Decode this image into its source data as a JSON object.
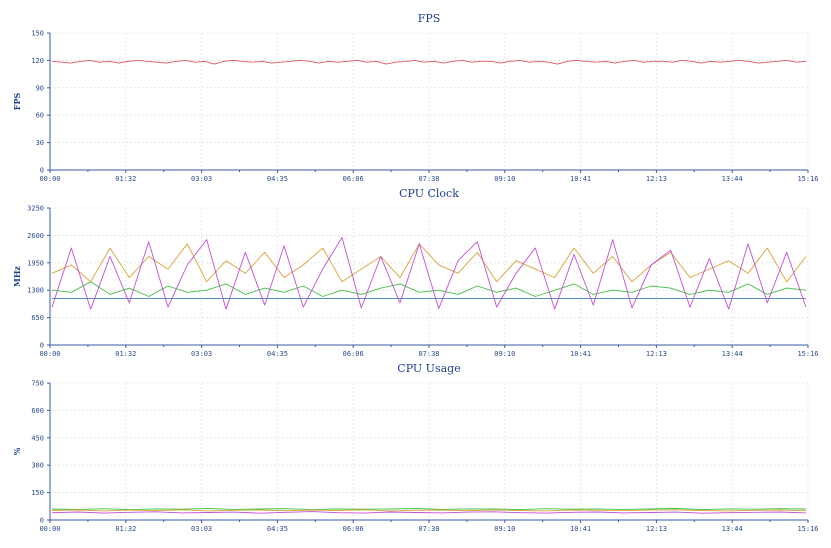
{
  "chart_data": [
    {
      "type": "line",
      "title": "FPS",
      "ylabel": "FPS",
      "xlabel": "",
      "ylim": [
        0,
        150
      ],
      "yticks": [
        0,
        30,
        60,
        90,
        120,
        150
      ],
      "xticks": [
        "00:00",
        "01:32",
        "03:03",
        "04:35",
        "06:06",
        "07:38",
        "09:10",
        "10:41",
        "12:13",
        "13:44",
        "15:16"
      ],
      "grid": true,
      "series": [
        {
          "name": "",
          "color": "#e05565",
          "values": [
            119,
            118,
            117,
            119,
            120,
            118,
            119,
            117,
            119,
            120,
            119,
            118,
            117,
            119,
            120,
            118,
            119,
            116,
            119,
            120,
            119,
            118,
            119,
            117,
            118,
            119,
            120,
            119,
            117,
            119,
            118,
            119,
            120,
            118,
            119,
            116,
            118,
            119,
            120,
            118,
            119,
            117,
            119,
            120,
            118,
            119,
            119,
            117,
            119,
            120,
            118,
            119,
            118,
            116,
            119,
            120,
            119,
            118,
            119,
            117,
            119,
            120,
            118,
            119,
            119,
            118,
            120,
            119,
            117,
            119,
            118,
            119,
            120,
            119,
            117,
            118,
            119,
            120,
            118,
            119
          ]
        }
      ]
    },
    {
      "type": "line",
      "title": "CPU Clock",
      "ylabel": "MHz",
      "xlabel": "",
      "ylim": [
        0,
        3250
      ],
      "yticks": [
        0,
        650,
        1300,
        1950,
        2600,
        3250
      ],
      "xticks": [
        "00:00",
        "01:32",
        "03:03",
        "04:35",
        "06:06",
        "07:38",
        "09:10",
        "10:41",
        "12:13",
        "13:44",
        "15:16"
      ],
      "grid": true,
      "series": [
        {
          "name": "",
          "color": "#3a7fb0",
          "values": [
            1100,
            1100,
            1100,
            1100,
            1100,
            1100,
            1100,
            1100,
            1100,
            1100,
            1100,
            1100,
            1100,
            1100,
            1100,
            1100,
            1100,
            1100,
            1100,
            1100,
            1100,
            1100,
            1100,
            1100,
            1100,
            1100,
            1100,
            1100,
            1100,
            1100,
            1100,
            1100,
            1100,
            1100,
            1100,
            1100,
            1100,
            1100,
            1100,
            1100
          ]
        },
        {
          "name": "",
          "color": "#44c043",
          "values": [
            1300,
            1250,
            1500,
            1200,
            1350,
            1150,
            1400,
            1250,
            1300,
            1450,
            1200,
            1350,
            1250,
            1400,
            1150,
            1300,
            1200,
            1350,
            1450,
            1250,
            1300,
            1200,
            1400,
            1250,
            1350,
            1150,
            1300,
            1450,
            1200,
            1300,
            1250,
            1400,
            1350,
            1200,
            1300,
            1250,
            1450,
            1200,
            1350,
            1300
          ]
        },
        {
          "name": "",
          "color": "#d9a23a",
          "values": [
            1700,
            1900,
            1500,
            2300,
            1600,
            2100,
            1800,
            2400,
            1500,
            2000,
            1700,
            2200,
            1600,
            1900,
            2300,
            1500,
            1800,
            2100,
            1600,
            2400,
            1900,
            1700,
            2200,
            1500,
            2000,
            1800,
            1600,
            2300,
            1700,
            2100,
            1500,
            1900,
            2200,
            1600,
            1800,
            2000,
            1700,
            2300,
            1500,
            2100
          ]
        },
        {
          "name": "",
          "color": "#c34fd6",
          "values": [
            900,
            2300,
            850,
            2100,
            1000,
            2450,
            900,
            1900,
            2500,
            850,
            2200,
            950,
            2350,
            900,
            1800,
            2550,
            880,
            2100,
            1000,
            2400,
            860,
            2000,
            2450,
            900,
            1700,
            2300,
            850,
            2150,
            950,
            2500,
            880,
            1900,
            2250,
            900,
            2050,
            850,
            2400,
            1000,
            2200,
            900
          ]
        }
      ]
    },
    {
      "type": "line",
      "title": "CPU Usage",
      "ylabel": "%",
      "xlabel": "",
      "ylim": [
        0,
        750
      ],
      "yticks": [
        0,
        150,
        300,
        450,
        600,
        750
      ],
      "xticks": [
        "00:00",
        "01:32",
        "03:03",
        "04:35",
        "06:06",
        "07:38",
        "09:10",
        "10:41",
        "12:13",
        "13:44",
        "15:16"
      ],
      "grid": true,
      "series": [
        {
          "name": "",
          "color": "#44c043",
          "values": [
            60,
            58,
            62,
            57,
            61,
            59,
            63,
            58,
            60,
            62,
            57,
            61,
            59,
            60,
            63,
            58,
            61,
            60,
            57,
            62,
            59,
            61,
            58,
            60,
            63,
            57,
            61,
            59,
            62,
            60
          ]
        },
        {
          "name": "",
          "color": "#d9a23a",
          "values": [
            52,
            55,
            50,
            54,
            51,
            56,
            50,
            53,
            55,
            51,
            54,
            52,
            56,
            50,
            53,
            55,
            51,
            54,
            52,
            50,
            55,
            53,
            51,
            54,
            56,
            52,
            50,
            53,
            55,
            51
          ]
        },
        {
          "name": "",
          "color": "#c34fd6",
          "values": [
            40,
            44,
            38,
            42,
            45,
            39,
            41,
            43,
            37,
            42,
            46,
            40,
            38,
            44,
            41,
            39,
            43,
            45,
            40,
            38,
            42,
            44,
            39,
            41,
            43,
            37,
            40,
            42,
            44,
            39
          ]
        }
      ]
    }
  ]
}
